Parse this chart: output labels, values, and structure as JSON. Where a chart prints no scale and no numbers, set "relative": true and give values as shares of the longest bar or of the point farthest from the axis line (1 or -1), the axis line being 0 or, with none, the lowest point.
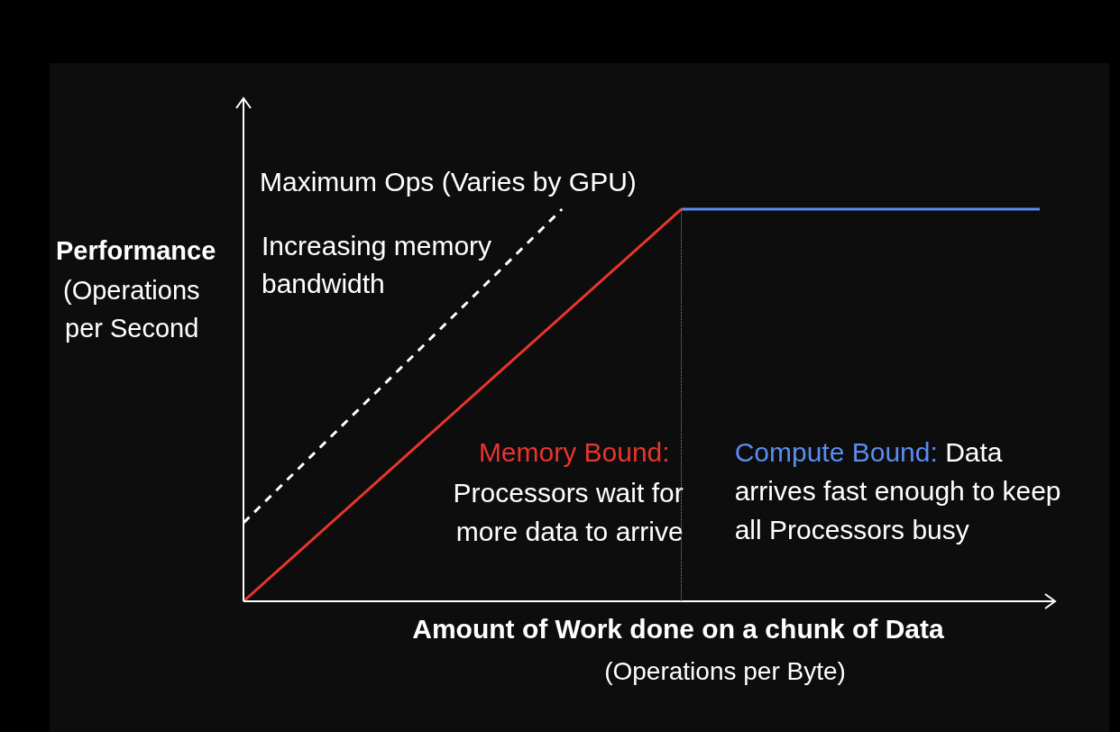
{
  "chart_data": {
    "type": "line",
    "relative": true,
    "legend": false,
    "categories": [
      null,
      null,
      null,
      null,
      null,
      null,
      null,
      null,
      null,
      null,
      null,
      null,
      null,
      null,
      null,
      null,
      null,
      null,
      null,
      null,
      null
    ],
    "xlabel": "Amount of Work done on a chunk of Data (Operations per Byte)",
    "ylabel": "Performance (Operations per Second",
    "series": [
      {
        "values": [
          0,
          null,
          null,
          null,
          null,
          null,
          null,
          null,
          null,
          null,
          null,
          1,
          null,
          null,
          null,
          null,
          null,
          null,
          null,
          null,
          null
        ],
        "color": "#e8352e",
        "name": "Memory Bound:",
        "line_style": "solid"
      },
      {
        "values": [
          null,
          null,
          null,
          null,
          null,
          null,
          null,
          null,
          null,
          null,
          null,
          1,
          null,
          null,
          null,
          null,
          null,
          null,
          null,
          null,
          1
        ],
        "color": "#5b8cf0",
        "name": "Compute Bound:",
        "line_style": "solid"
      },
      {
        "values": [
          0.2,
          null,
          null,
          null,
          null,
          null,
          null,
          null,
          1,
          null,
          null,
          null,
          null,
          null,
          null,
          null,
          null,
          null,
          null,
          null,
          null
        ],
        "color": "#ffffff",
        "line_style": "dashed"
      }
    ],
    "annotations": [
      "Maximum Ops (Varies by GPU)",
      "Increasing memory bandwidth",
      "Processors wait for more data to arrive",
      "Data arrives fast enough to keep all Processors busy"
    ]
  }
}
